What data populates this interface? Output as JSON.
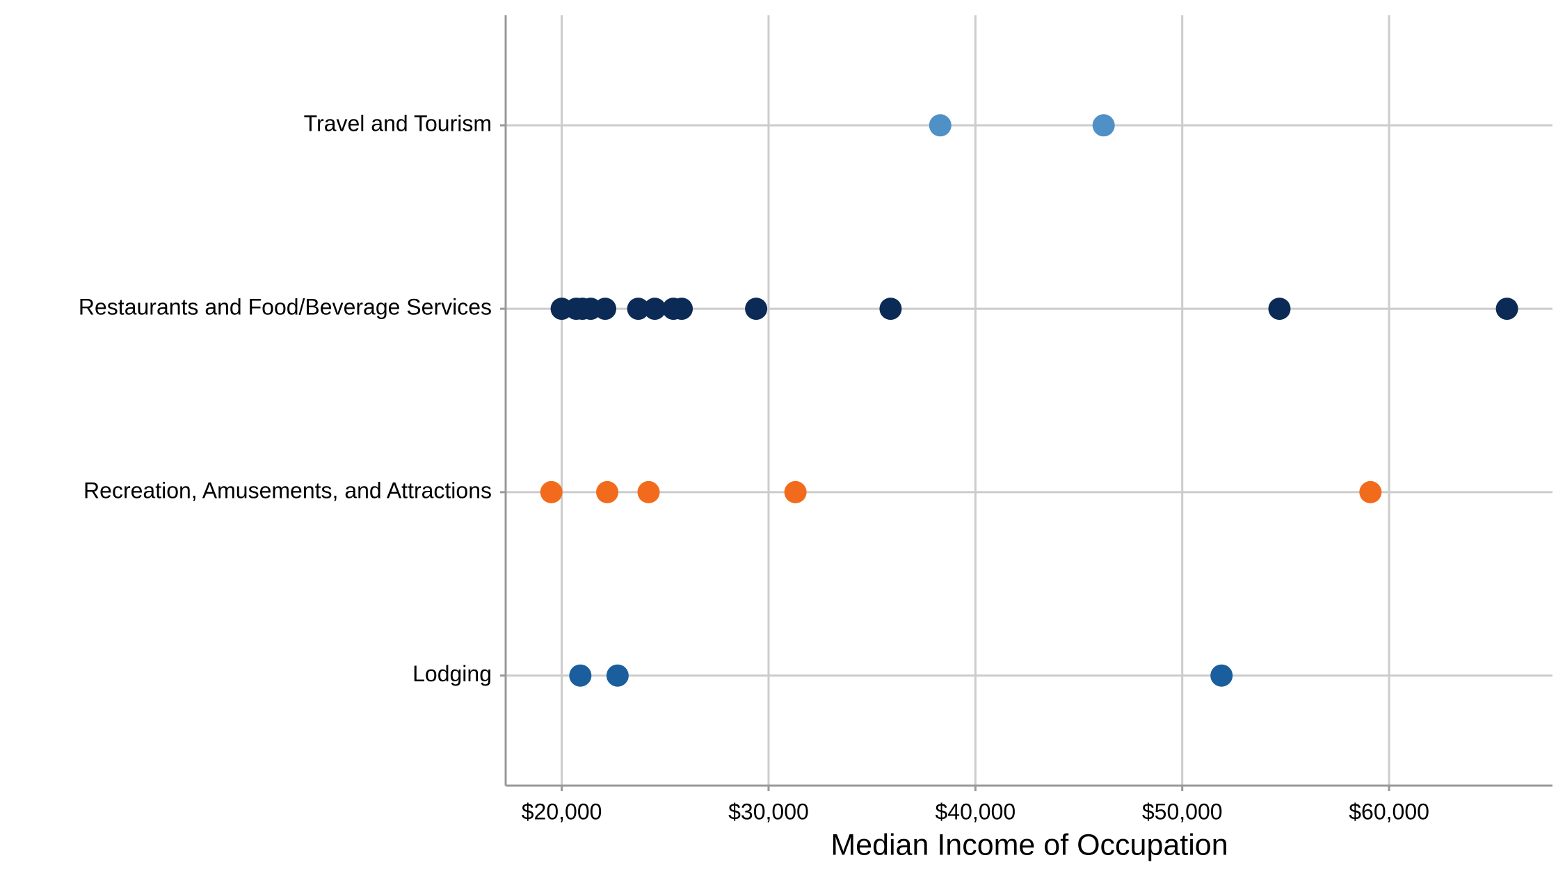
{
  "chart_data": {
    "type": "dotplot",
    "xlabel": "Median Income of Occupation",
    "xlim": [
      17290,
      67900
    ],
    "xticks": [
      {
        "value": 20000,
        "label": "$20,000"
      },
      {
        "value": 30000,
        "label": "$30,000"
      },
      {
        "value": 40000,
        "label": "$40,000"
      },
      {
        "value": 50000,
        "label": "$50,000"
      },
      {
        "value": 60000,
        "label": "$60,000"
      }
    ],
    "grid": true,
    "groups": [
      {
        "label": "Travel and Tourism",
        "color": "#4f90c6",
        "values": [
          38300,
          46200
        ]
      },
      {
        "label": "Restaurants and Food/Beverage Services",
        "color": "#0b2a55",
        "values": [
          20000,
          20700,
          21000,
          21400,
          22100,
          23700,
          24500,
          25400,
          25800,
          29400,
          35900,
          54700,
          65700
        ]
      },
      {
        "label": "Recreation, Amusements, and Attractions",
        "color": "#f26b1d",
        "values": [
          19500,
          22200,
          24200,
          31300,
          59100
        ]
      },
      {
        "label": "Lodging",
        "color": "#1b5e9e",
        "values": [
          20900,
          22700,
          51900
        ]
      }
    ]
  }
}
